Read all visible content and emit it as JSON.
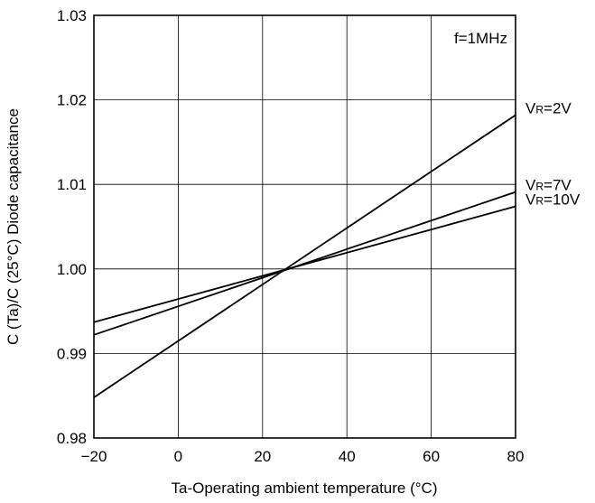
{
  "chart_data": {
    "type": "line",
    "xlabel": "Ta-Operating ambient temperature (°C)",
    "ylabel": "C (Ta)/C (25°C) Diode capacitance",
    "xlim": [
      -20,
      80
    ],
    "ylim": [
      0.98,
      1.03
    ],
    "x_ticks": [
      -20,
      0,
      20,
      40,
      60,
      80
    ],
    "x_tick_labels": [
      "−20",
      "0",
      "20",
      "40",
      "60",
      "80"
    ],
    "y_ticks": [
      0.98,
      0.99,
      1.0,
      1.01,
      1.02,
      1.03
    ],
    "y_tick_labels": [
      "0.98",
      "0.99",
      "1.00",
      "1.01",
      "1.02",
      "1.03"
    ],
    "grid": true,
    "annotation": "f=1MHz",
    "series": [
      {
        "name": "VR=2V",
        "label_main": "V",
        "label_sub": "R",
        "label_rest": "=2V",
        "x": [
          -20,
          80
        ],
        "y": [
          0.9848,
          1.0182
        ]
      },
      {
        "name": "VR=7V",
        "label_main": "V",
        "label_sub": "R",
        "label_rest": "=7V",
        "x": [
          -20,
          80
        ],
        "y": [
          0.9922,
          1.0091
        ]
      },
      {
        "name": "VR=10V",
        "label_main": "V",
        "label_sub": "R",
        "label_rest": "=10V",
        "x": [
          -20,
          80
        ],
        "y": [
          0.9937,
          1.0074
        ]
      }
    ]
  }
}
